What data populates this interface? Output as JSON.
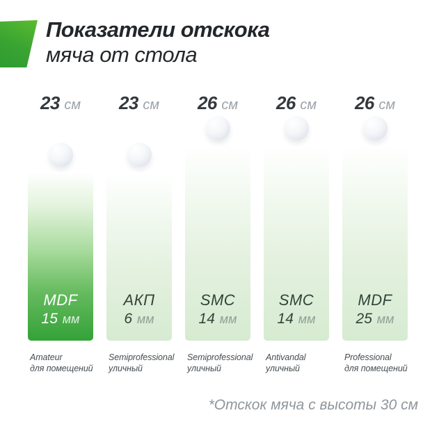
{
  "title": {
    "line1": "Показатели отскока",
    "line2": "мяча от стола"
  },
  "footnote": "*Отскок мяча с высоты 30 см",
  "chart_data": {
    "type": "bar",
    "title": "Показатели отскока мяча от стола",
    "unit": "см",
    "footnote": "*Отскок мяча с высоты 30 см",
    "categories": [
      "MDF 15 мм",
      "АКП 6 мм",
      "SMC 14 мм",
      "SMC 14 мм",
      "MDF 25 мм"
    ],
    "values": [
      23,
      23,
      26,
      26,
      26
    ],
    "ylim": [
      0,
      26
    ],
    "bars": [
      {
        "bounce_value": "23",
        "bounce_unit": "см",
        "material": "MDF",
        "thickness_value": "15",
        "thickness_unit": "мм",
        "grade_en": "Amateur",
        "grade_ru": "для помещений",
        "highlighted": true
      },
      {
        "bounce_value": "23",
        "bounce_unit": "см",
        "material": "АКП",
        "thickness_value": "6",
        "thickness_unit": "мм",
        "grade_en": "Semiprofessional",
        "grade_ru": "уличный",
        "highlighted": false
      },
      {
        "bounce_value": "26",
        "bounce_unit": "см",
        "material": "SMC",
        "thickness_value": "14",
        "thickness_unit": "мм",
        "grade_en": "Semiprofessional",
        "grade_ru": "уличный",
        "highlighted": false
      },
      {
        "bounce_value": "26",
        "bounce_unit": "см",
        "material": "SMC",
        "thickness_value": "14",
        "thickness_unit": "мм",
        "grade_en": "Antivandal",
        "grade_ru": "уличный",
        "highlighted": false
      },
      {
        "bounce_value": "26",
        "bounce_unit": "см",
        "material": "MDF",
        "thickness_value": "25",
        "thickness_unit": "мм",
        "grade_en": "Professional",
        "grade_ru": "для помещений",
        "highlighted": false
      }
    ]
  },
  "colors": {
    "accent_green": "#34a238",
    "light_green": "#d6ebd1",
    "logo_green_light": "#5abb2f",
    "logo_green_dark": "#2e9c31",
    "text_dark": "#34393d",
    "text_gray": "#9ba2a9"
  }
}
